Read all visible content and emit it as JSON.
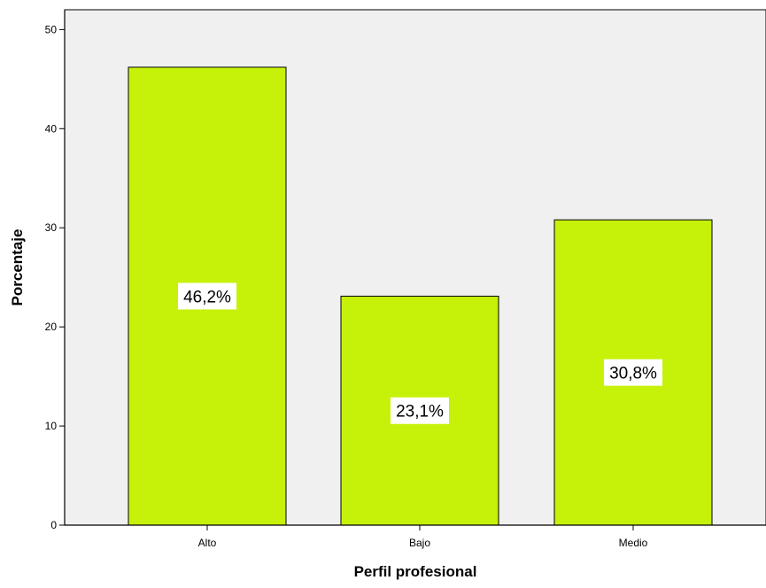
{
  "chart_data": {
    "type": "bar",
    "title": "",
    "xlabel": "Perfil profesional",
    "ylabel": "Porcentaje",
    "categories": [
      "Alto",
      "Bajo",
      "Medio"
    ],
    "values": [
      46.2,
      23.1,
      30.8
    ],
    "data_labels": [
      "46,2%",
      "23,1%",
      "30,8%"
    ],
    "ylim": [
      0,
      52
    ],
    "yticks": [
      0,
      10,
      20,
      30,
      40,
      50
    ],
    "grid": false,
    "legend": "none"
  },
  "colors": {
    "bar_fill": "#c6f209",
    "plot_background": "#f0f0f0",
    "axis": "#000000",
    "label_box": "#ffffff"
  }
}
